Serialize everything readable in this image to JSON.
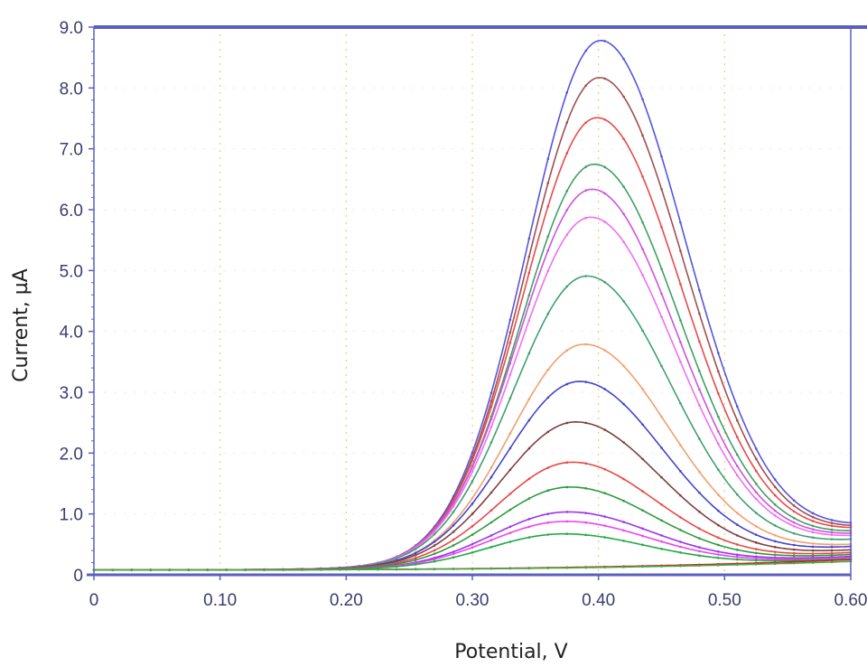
{
  "chart_data": {
    "type": "line",
    "title": "",
    "xlabel": "Potential, V",
    "ylabel": "Current, µA",
    "xlim": [
      0,
      0.6
    ],
    "ylim": [
      0,
      9.0
    ],
    "x_ticks": [
      "0",
      "0.10",
      "0.20",
      "0.30",
      "0.40",
      "0.50",
      "0.60"
    ],
    "y_ticks": [
      "0",
      "1.0",
      "2.0",
      "3.0",
      "4.0",
      "5.0",
      "6.0",
      "7.0",
      "8.0",
      "9.0"
    ],
    "grid": true,
    "colors": {
      "axis": "#5a5fc0",
      "grid": "#e8cc7a"
    },
    "series": [
      {
        "color": "#5555dd",
        "peak_x": 0.401,
        "peak_y": 8.5,
        "baseline_end": 0.75
      },
      {
        "color": "#a05050",
        "peak_x": 0.4,
        "peak_y": 7.9,
        "baseline_end": 0.72
      },
      {
        "color": "#e84a4a",
        "peak_x": 0.398,
        "peak_y": 7.25,
        "baseline_end": 0.7
      },
      {
        "color": "#3fa063",
        "peak_x": 0.396,
        "peak_y": 6.5,
        "baseline_end": 0.66
      },
      {
        "color": "#cc55dd",
        "peak_x": 0.394,
        "peak_y": 6.1,
        "baseline_end": 0.63
      },
      {
        "color": "#f070ee",
        "peak_x": 0.393,
        "peak_y": 5.65,
        "baseline_end": 0.6
      },
      {
        "color": "#3fa073",
        "peak_x": 0.39,
        "peak_y": 4.7,
        "baseline_end": 0.55
      },
      {
        "color": "#f0a070",
        "peak_x": 0.388,
        "peak_y": 3.6,
        "baseline_end": 0.48
      },
      {
        "color": "#4444cc",
        "peak_x": 0.384,
        "peak_y": 3.0,
        "baseline_end": 0.45
      },
      {
        "color": "#804040",
        "peak_x": 0.381,
        "peak_y": 2.35,
        "baseline_end": 0.4
      },
      {
        "color": "#e84848",
        "peak_x": 0.378,
        "peak_y": 1.7,
        "baseline_end": 0.36
      },
      {
        "color": "#2e9a3e",
        "peak_x": 0.376,
        "peak_y": 1.3,
        "baseline_end": 0.33
      },
      {
        "color": "#9933ee",
        "peak_x": 0.374,
        "peak_y": 0.9,
        "baseline_end": 0.3
      },
      {
        "color": "#ee44ee",
        "peak_x": 0.372,
        "peak_y": 0.75,
        "baseline_end": 0.28
      },
      {
        "color": "#22aa44",
        "peak_x": 0.37,
        "peak_y": 0.55,
        "baseline_end": 0.26
      },
      {
        "color": "#cc2222",
        "peak_x": 0.4,
        "peak_y": 0.0,
        "baseline_end": 0.25
      },
      {
        "color": "#44aa44",
        "peak_x": 0.4,
        "peak_y": 0.0,
        "baseline_end": 0.22
      }
    ]
  }
}
